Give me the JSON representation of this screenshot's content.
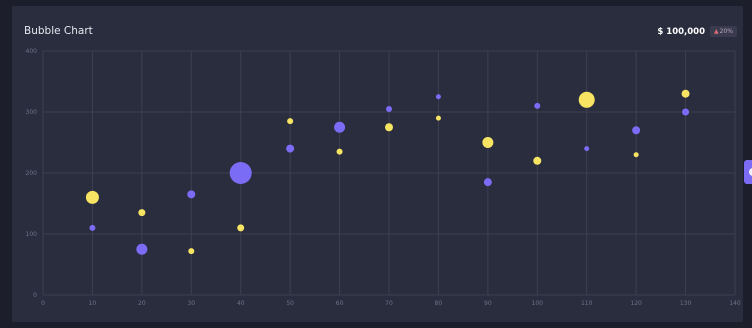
{
  "header": {
    "title": "Bubble Chart",
    "total": "$ 100,000",
    "change": "20%",
    "change_arrow": "▲"
  },
  "colors": {
    "background": "#1c1f2b",
    "card": "#2a2d3e",
    "grid": "#3d4052",
    "series_a": "#7b6cf6",
    "series_b": "#f7e463"
  },
  "chart_data": {
    "type": "scatter",
    "title": "Bubble Chart",
    "xlim": [
      0,
      140
    ],
    "ylim": [
      0,
      400
    ],
    "xticks": [
      0,
      10,
      20,
      30,
      40,
      50,
      60,
      70,
      80,
      90,
      100,
      110,
      120,
      130,
      140
    ],
    "yticks": [
      0,
      100,
      200,
      300,
      400
    ],
    "grid": true,
    "series": [
      {
        "color": "#7b6cf6",
        "points": [
          {
            "x": 10,
            "y": 110,
            "size": 3
          },
          {
            "x": 20,
            "y": 75,
            "size": 5.5
          },
          {
            "x": 30,
            "y": 165,
            "size": 4
          },
          {
            "x": 40,
            "y": 200,
            "size": 11
          },
          {
            "x": 50,
            "y": 240,
            "size": 4
          },
          {
            "x": 60,
            "y": 275,
            "size": 5.5
          },
          {
            "x": 70,
            "y": 305,
            "size": 3
          },
          {
            "x": 80,
            "y": 325,
            "size": 2.5
          },
          {
            "x": 90,
            "y": 185,
            "size": 4
          },
          {
            "x": 100,
            "y": 310,
            "size": 3
          },
          {
            "x": 110,
            "y": 240,
            "size": 2.5
          },
          {
            "x": 120,
            "y": 270,
            "size": 4
          },
          {
            "x": 130,
            "y": 300,
            "size": 3.5
          }
        ]
      },
      {
        "color": "#f7e463",
        "points": [
          {
            "x": 10,
            "y": 160,
            "size": 6.5
          },
          {
            "x": 20,
            "y": 135,
            "size": 3.5
          },
          {
            "x": 30,
            "y": 72,
            "size": 3
          },
          {
            "x": 40,
            "y": 110,
            "size": 3.5
          },
          {
            "x": 50,
            "y": 285,
            "size": 3
          },
          {
            "x": 60,
            "y": 235,
            "size": 3
          },
          {
            "x": 70,
            "y": 275,
            "size": 4
          },
          {
            "x": 80,
            "y": 290,
            "size": 2.5
          },
          {
            "x": 90,
            "y": 250,
            "size": 5.5
          },
          {
            "x": 100,
            "y": 220,
            "size": 4
          },
          {
            "x": 110,
            "y": 320,
            "size": 8
          },
          {
            "x": 120,
            "y": 230,
            "size": 2.5
          },
          {
            "x": 130,
            "y": 330,
            "size": 4
          }
        ]
      }
    ]
  }
}
